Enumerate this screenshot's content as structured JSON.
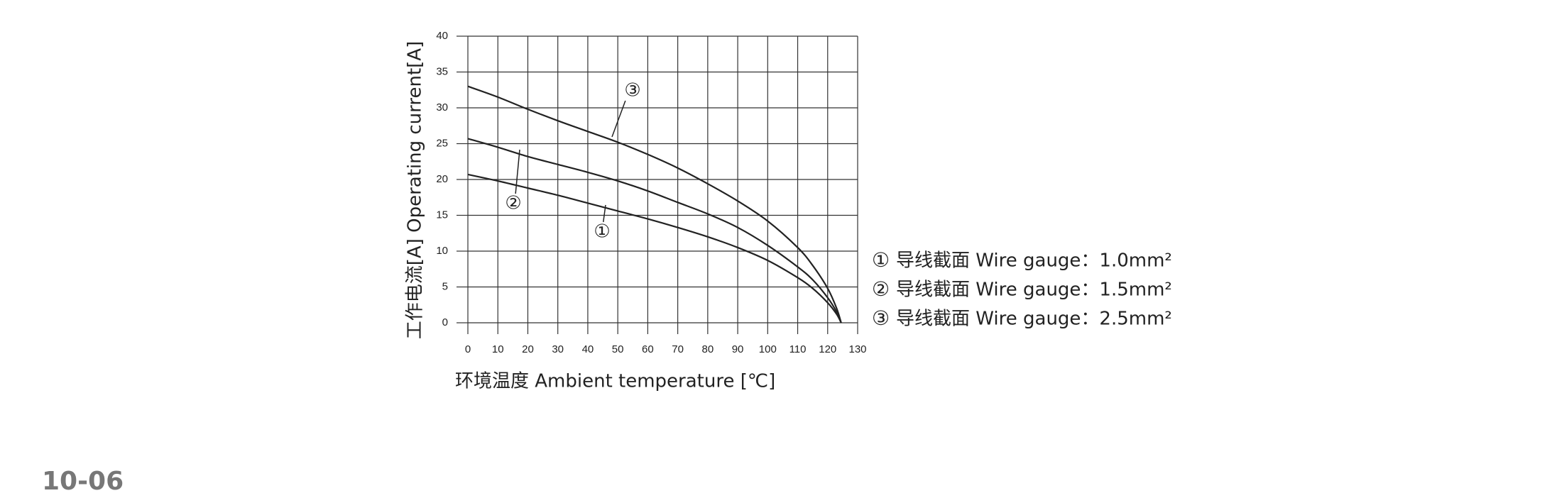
{
  "chart_data": {
    "type": "line",
    "y_label": "工作电流[A]  Operating current[A]",
    "x_label": "环境温度 Ambient temperature [℃]",
    "x": [
      0,
      10,
      20,
      30,
      40,
      50,
      60,
      70,
      80,
      90,
      100,
      110,
      115,
      120,
      123,
      124.5
    ],
    "series": [
      {
        "name": "导线截面 Wire gauge：1.0mm²",
        "marker": "①",
        "color": "#222222",
        "values": [
          20.7,
          19.8,
          18.8,
          17.8,
          16.7,
          15.6,
          14.5,
          13.3,
          12,
          10.5,
          8.7,
          6.3,
          4.8,
          2.8,
          1.2,
          0
        ]
      },
      {
        "name": "导线截面 Wire gauge：1.5mm²",
        "marker": "②",
        "color": "#222222",
        "values": [
          25.7,
          24.5,
          23.2,
          22.1,
          21,
          19.8,
          18.4,
          16.8,
          15.2,
          13.3,
          10.8,
          7.8,
          6,
          3.5,
          1.5,
          0
        ]
      },
      {
        "name": "导线截面 Wire gauge：2.5mm²",
        "marker": "③",
        "color": "#222222",
        "values": [
          33,
          31.5,
          29.8,
          28.2,
          26.7,
          25.2,
          23.5,
          21.6,
          19.4,
          17,
          14.2,
          10.5,
          8,
          4.8,
          2,
          0
        ]
      }
    ],
    "xlim": [
      0,
      130
    ],
    "xticks": [
      0,
      10,
      20,
      30,
      40,
      50,
      60,
      70,
      80,
      90,
      100,
      110,
      120,
      130
    ],
    "ylim": [
      0,
      40
    ],
    "yticks": [
      0,
      5,
      10,
      15,
      20,
      25,
      30,
      35,
      40
    ],
    "grid": true
  },
  "footer": "10-06"
}
